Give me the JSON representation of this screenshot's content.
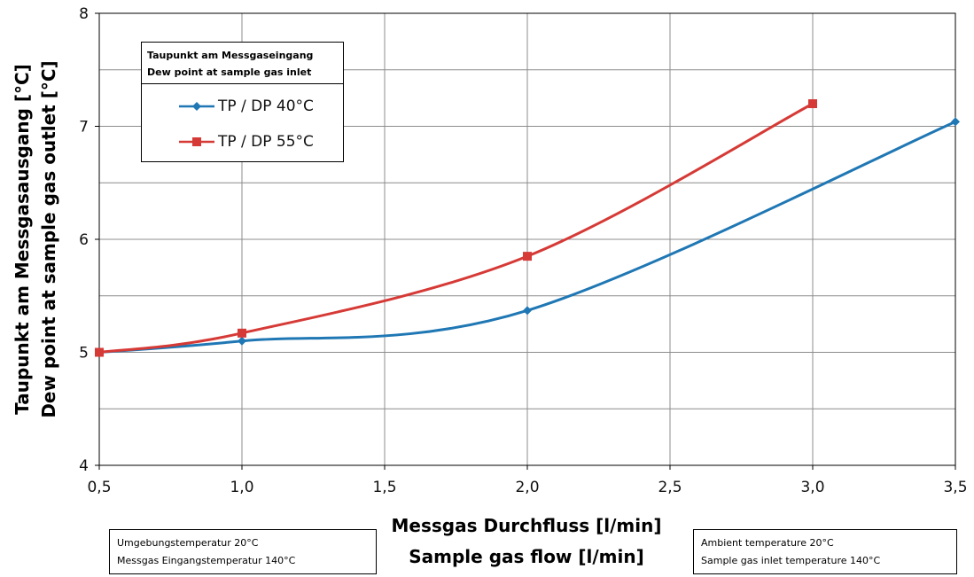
{
  "chart_data": {
    "type": "line",
    "xlabel": [
      "Messgas Durchfluss [l/min]",
      "Sample gas flow [l/min]"
    ],
    "ylabel": [
      "Taupunkt am Messgasausgang [°C]",
      "Dew point at sample gas outlet [°C]"
    ],
    "xlim": [
      0.5,
      3.5
    ],
    "ylim": [
      4,
      8
    ],
    "x_ticks": [
      "0,5",
      "1,0",
      "1,5",
      "2,0",
      "2,5",
      "3,0",
      "3,5"
    ],
    "y_ticks": [
      "4",
      "5",
      "6",
      "7",
      "8"
    ],
    "grid": true,
    "legend_title": [
      "Taupunkt am Messgaseingang",
      "Dew point at sample gas inlet"
    ],
    "legend_placement": "top-left",
    "series": [
      {
        "name": "TP / DP 40°C",
        "color": "#1f77b4",
        "marker": "diamond",
        "points": [
          [
            0.5,
            5.0
          ],
          [
            1.0,
            5.1
          ],
          [
            2.0,
            5.37
          ],
          [
            3.5,
            7.04
          ]
        ]
      },
      {
        "name": "TP / DP 55°C",
        "color": "#d63a36",
        "marker": "square",
        "points": [
          [
            0.5,
            5.0
          ],
          [
            1.0,
            5.17
          ],
          [
            2.0,
            5.85
          ],
          [
            3.0,
            7.2
          ]
        ]
      }
    ]
  },
  "notes": {
    "german": [
      "Umgebungstemperatur 20°C",
      "Messgas Eingangstemperatur 140°C"
    ],
    "english": [
      "Ambient temperature 20°C",
      "Sample gas inlet temperature 140°C"
    ]
  }
}
